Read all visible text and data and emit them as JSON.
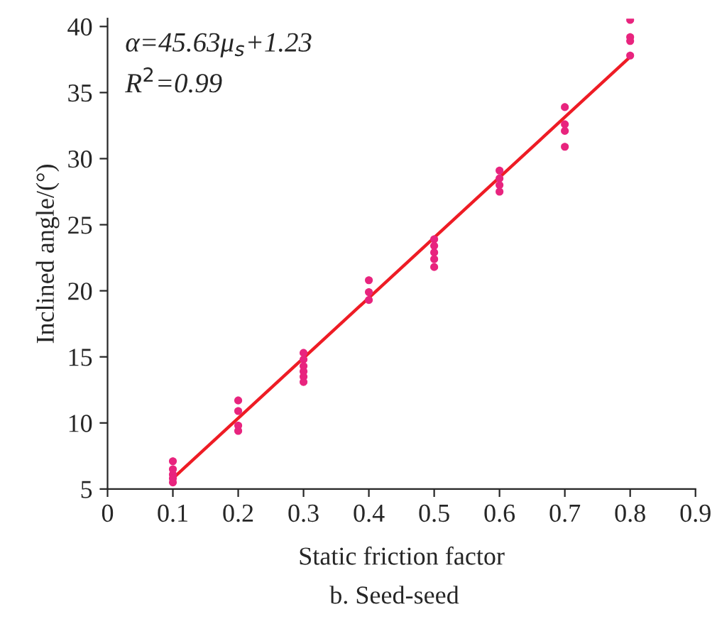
{
  "chart_data": {
    "type": "scatter",
    "title": "b. Seed-seed",
    "xlabel": "Static friction factor",
    "ylabel": "Inclined angle/(°)",
    "xlim": [
      0,
      0.9
    ],
    "xticks": [
      0,
      0.1,
      0.2,
      0.3,
      0.4,
      0.5,
      0.6,
      0.7,
      0.8,
      0.9
    ],
    "ylim": [
      5,
      40.6
    ],
    "yticks": [
      5,
      10,
      15,
      20,
      25,
      30,
      35,
      40
    ],
    "grid": false,
    "legend": false,
    "series": [
      {
        "marker": "circle",
        "color": "#e8247e",
        "x": [
          0.1,
          0.1,
          0.1,
          0.1,
          0.1,
          0.2,
          0.2,
          0.2,
          0.2,
          0.3,
          0.3,
          0.3,
          0.3,
          0.3,
          0.3,
          0.4,
          0.4,
          0.4,
          0.5,
          0.5,
          0.5,
          0.5,
          0.5,
          0.6,
          0.6,
          0.6,
          0.6,
          0.7,
          0.7,
          0.7,
          0.7,
          0.8,
          0.8,
          0.8,
          0.8
        ],
        "values": [
          7.1,
          6.5,
          6.1,
          5.8,
          5.5,
          11.7,
          10.9,
          9.8,
          9.4,
          15.3,
          14.8,
          14.3,
          13.9,
          13.5,
          13.1,
          20.8,
          19.9,
          19.3,
          23.9,
          23.4,
          22.9,
          22.4,
          21.8,
          29.1,
          28.5,
          28.0,
          27.5,
          33.9,
          32.6,
          32.1,
          30.9,
          40.5,
          39.2,
          38.9,
          37.8
        ]
      },
      {
        "type": "line",
        "color": "#ee1c25",
        "x": [
          0.1,
          0.8
        ],
        "values": [
          5.8,
          37.7
        ]
      }
    ],
    "annotations": [
      "α=45.63μ$_{s}$+1.23",
      "R$^{2}$=0.99"
    ]
  }
}
